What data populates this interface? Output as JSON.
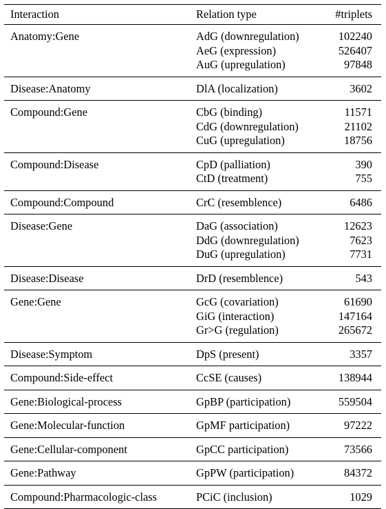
{
  "header": {
    "interaction": "Interaction",
    "relation": "Relation type",
    "count": "#triplets"
  },
  "groups": [
    {
      "interaction": "Anatomy:Gene",
      "rows": [
        {
          "relation": "AdG (downregulation)",
          "count": "102240"
        },
        {
          "relation": "AeG (expression)",
          "count": "526407"
        },
        {
          "relation": "AuG (upregulation)",
          "count": "97848"
        }
      ]
    },
    {
      "interaction": "Disease:Anatomy",
      "rows": [
        {
          "relation": "DlA (localization)",
          "count": "3602"
        }
      ]
    },
    {
      "interaction": "Compound:Gene",
      "rows": [
        {
          "relation": "CbG (binding)",
          "count": "11571"
        },
        {
          "relation": "CdG (downregulation)",
          "count": "21102"
        },
        {
          "relation": "CuG (upregulation)",
          "count": "18756"
        }
      ]
    },
    {
      "interaction": "Compound:Disease",
      "rows": [
        {
          "relation": "CpD (palliation)",
          "count": "390"
        },
        {
          "relation": "CtD (treatment)",
          "count": "755"
        }
      ]
    },
    {
      "interaction": "Compound:Compound",
      "rows": [
        {
          "relation": "CrC (resemblence)",
          "count": "6486"
        }
      ]
    },
    {
      "interaction": "Disease:Gene",
      "rows": [
        {
          "relation": "DaG (association)",
          "count": "12623"
        },
        {
          "relation": "DdG (downregulation)",
          "count": "7623"
        },
        {
          "relation": "DuG (upregulation)",
          "count": "7731"
        }
      ]
    },
    {
      "interaction": "Disease:Disease",
      "rows": [
        {
          "relation": "DrD (resemblence)",
          "count": "543"
        }
      ]
    },
    {
      "interaction": "Gene:Gene",
      "rows": [
        {
          "relation": "GcG (covariation)",
          "count": "61690"
        },
        {
          "relation": "GiG (interaction)",
          "count": "147164"
        },
        {
          "relation": "Gr>G (regulation)",
          "count": "265672"
        }
      ]
    },
    {
      "interaction": "Disease:Symptom",
      "rows": [
        {
          "relation": "DpS (present)",
          "count": "3357"
        }
      ]
    },
    {
      "interaction": "Compound:Side-effect",
      "rows": [
        {
          "relation": "CcSE (causes)",
          "count": "138944"
        }
      ]
    },
    {
      "interaction": "Gene:Biological-process",
      "rows": [
        {
          "relation": "GpBP (participation)",
          "count": "559504"
        }
      ]
    },
    {
      "interaction": "Gene:Molecular-function",
      "rows": [
        {
          "relation": "GpMF participation)",
          "count": "97222"
        }
      ]
    },
    {
      "interaction": "Gene:Cellular-component",
      "rows": [
        {
          "relation": "GpCC participation)",
          "count": "73566"
        }
      ]
    },
    {
      "interaction": "Gene:Pathway",
      "rows": [
        {
          "relation": "GpPW (participation)",
          "count": "84372"
        }
      ]
    },
    {
      "interaction": "Compound:Pharmacologic-class",
      "rows": [
        {
          "relation": "PCiC (inclusion)",
          "count": "1029"
        }
      ]
    }
  ]
}
